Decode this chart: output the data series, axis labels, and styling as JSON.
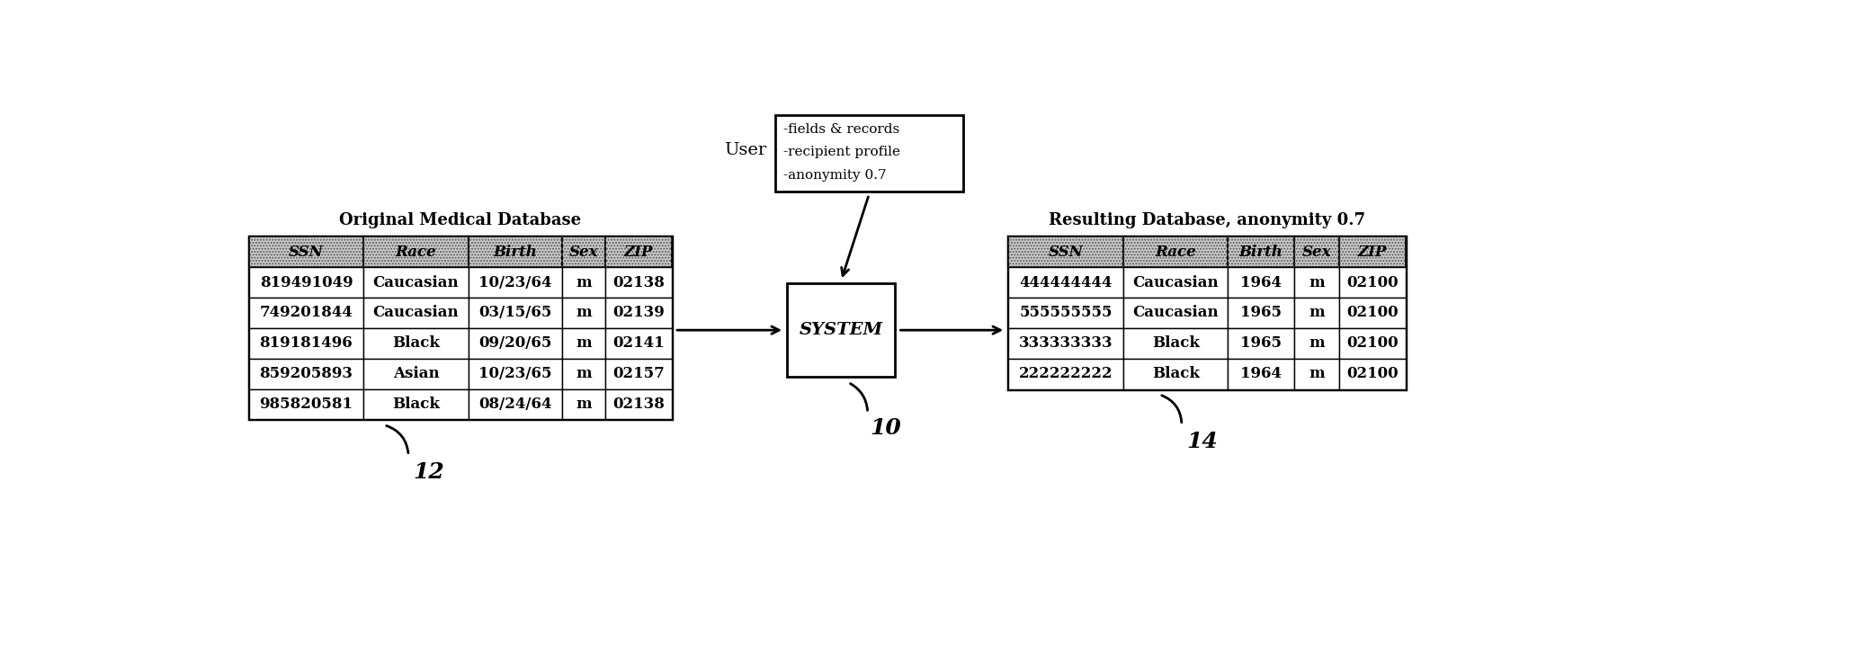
{
  "fig_width": 20.57,
  "fig_height": 7.24,
  "bg_color": "#ffffff",
  "orig_title": "Original Medical Database",
  "orig_headers": [
    "SSN",
    "Race",
    "Birth",
    "Sex",
    "ZIP"
  ],
  "orig_col_widths": [
    1.65,
    1.5,
    1.35,
    0.62,
    0.95
  ],
  "orig_data": [
    [
      "819491049",
      "Caucasian",
      "10/23/64",
      "m",
      "02138"
    ],
    [
      "749201844",
      "Caucasian",
      "03/15/65",
      "m",
      "02139"
    ],
    [
      "819181496",
      "Black",
      "09/20/65",
      "m",
      "02141"
    ],
    [
      "859205893",
      "Asian",
      "10/23/65",
      "m",
      "02157"
    ],
    [
      "985820581",
      "Black",
      "08/24/64",
      "m",
      "02138"
    ]
  ],
  "orig_label": "12",
  "result_title": "Resulting Database, anonymity 0.7",
  "result_headers": [
    "SSN",
    "Race",
    "Birth",
    "Sex",
    "ZIP"
  ],
  "result_col_widths": [
    1.65,
    1.5,
    0.95,
    0.65,
    0.95
  ],
  "result_data": [
    [
      "444444444",
      "Caucasian",
      "1964",
      "m",
      "02100"
    ],
    [
      "555555555",
      "Caucasian",
      "1965",
      "m",
      "02100"
    ],
    [
      "333333333",
      "Black",
      "1965",
      "m",
      "02100"
    ],
    [
      "222222222",
      "Black",
      "1964",
      "m",
      "02100"
    ]
  ],
  "result_label": "14",
  "user_label": "User",
  "user_box_lines": [
    "-fields & records",
    "-recipient profile",
    "-anonymity 0.7"
  ],
  "system_label": "SYSTEM",
  "system_label_10": "10",
  "header_bg": "#b0b0b0",
  "cell_bg": "#ffffff",
  "border_color": "#000000",
  "font_size_title": 13,
  "font_size_header": 12,
  "font_size_cell": 12,
  "font_size_label": 13,
  "font_size_ref": 16,
  "font_size_system": 14,
  "font_size_user": 13
}
